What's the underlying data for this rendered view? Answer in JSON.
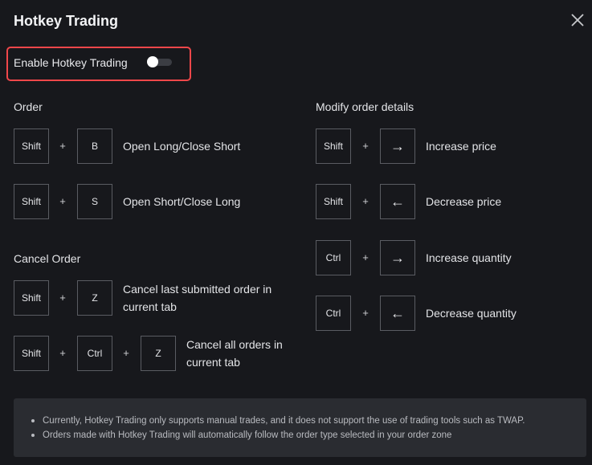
{
  "title": "Hotkey Trading",
  "enable": {
    "label": "Enable Hotkey Trading",
    "enabled": false
  },
  "order": {
    "heading": "Order",
    "rows": [
      {
        "keys": [
          "Shift",
          "B"
        ],
        "action": "Open Long/Close Short"
      },
      {
        "keys": [
          "Shift",
          "S"
        ],
        "action": "Open Short/Close Long"
      }
    ]
  },
  "cancel": {
    "heading": "Cancel Order",
    "rows": [
      {
        "keys": [
          "Shift",
          "Z"
        ],
        "action_line1": "Cancel last submitted order in",
        "action_line2": "current tab"
      },
      {
        "keys": [
          "Shift",
          "Ctrl",
          "Z"
        ],
        "action_line1": "Cancel all orders in",
        "action_line2": "current tab"
      }
    ]
  },
  "modify": {
    "heading": "Modify order details",
    "rows": [
      {
        "keys": [
          "Shift",
          "→"
        ],
        "action": "Increase price"
      },
      {
        "keys": [
          "Shift",
          "←"
        ],
        "action": "Decrease price"
      },
      {
        "keys": [
          "Ctrl",
          "→"
        ],
        "action": "Increase quantity"
      },
      {
        "keys": [
          "Ctrl",
          "←"
        ],
        "action": "Decrease quantity"
      }
    ]
  },
  "plus": "+",
  "notes": [
    "Currently, Hotkey Trading only supports manual trades, and it does not support the use of trading tools such as TWAP.",
    "Orders made with Hotkey Trading will automatically follow the order type selected in your order zone"
  ],
  "colors": {
    "background": "#17181c",
    "highlight": "#f0474a",
    "note_bg": "#2a2c31"
  }
}
